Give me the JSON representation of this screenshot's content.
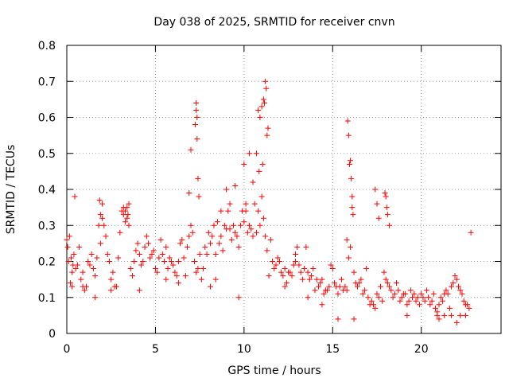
{
  "chart_data": {
    "type": "scatter",
    "title": "Day 038 of 2025, SRMTID for receiver cnvn",
    "xlabel": "GPS time / hours",
    "ylabel": "SRMTID / TECUs",
    "xlim": [
      0,
      24.5
    ],
    "ylim": [
      0,
      0.8
    ],
    "xticks": [
      0,
      5,
      10,
      15,
      20
    ],
    "yticks": [
      0,
      0.1,
      0.2,
      0.3,
      0.4,
      0.5,
      0.6,
      0.7,
      0.8
    ],
    "xtick_labels": [
      "0",
      "5",
      "10",
      "15",
      "20"
    ],
    "ytick_labels": [
      "0",
      "0.1",
      "0.2",
      "0.3",
      "0.4",
      "0.5",
      "0.6",
      "0.7",
      "0.8"
    ],
    "grid": true,
    "marker": "+",
    "color": "#ff0000",
    "series": [
      {
        "name": "SRMTID",
        "x": [
          0.0,
          0.1,
          0.2,
          0.3,
          0.4,
          0.5,
          0.6,
          0.7,
          0.8,
          0.9,
          1.0,
          1.1,
          1.2,
          1.3,
          1.4,
          1.5,
          1.6,
          1.7,
          1.8,
          1.9,
          2.0,
          2.1,
          2.2,
          2.3,
          2.4,
          2.5,
          2.6,
          2.7,
          2.8,
          2.9,
          3.0,
          3.1,
          3.2,
          3.3,
          3.4,
          3.5,
          3.6,
          3.7,
          3.8,
          3.9,
          4.0,
          4.1,
          4.2,
          4.3,
          4.4,
          4.5,
          4.6,
          4.7,
          4.8,
          4.9,
          5.0,
          5.1,
          5.2,
          5.3,
          5.4,
          5.5,
          5.6,
          5.7,
          5.8,
          5.9,
          6.0,
          6.1,
          6.2,
          6.3,
          6.4,
          6.5,
          6.6,
          6.7,
          6.8,
          6.9,
          7.0,
          7.1,
          7.2,
          7.3,
          7.4,
          7.5,
          7.6,
          7.7,
          7.8,
          7.9,
          8.0,
          8.1,
          8.2,
          8.3,
          8.4,
          8.5,
          8.6,
          8.7,
          8.8,
          8.9,
          9.0,
          9.1,
          9.2,
          9.3,
          9.4,
          9.5,
          9.6,
          9.7,
          9.8,
          9.9,
          10.0,
          10.1,
          10.2,
          10.3,
          10.4,
          10.5,
          10.6,
          10.7,
          10.8,
          10.9,
          11.0,
          11.1,
          11.2,
          11.3,
          11.4,
          11.5,
          11.6,
          11.7,
          11.8,
          11.9,
          12.0,
          12.1,
          12.2,
          12.3,
          12.4,
          12.5,
          12.6,
          12.7,
          12.8,
          12.9,
          13.0,
          13.1,
          13.2,
          13.3,
          13.4,
          13.5,
          13.6,
          13.7,
          13.8,
          13.9,
          14.0,
          14.1,
          14.2,
          14.3,
          14.4,
          14.5,
          14.6,
          14.7,
          14.8,
          14.9,
          15.0,
          15.1,
          15.2,
          15.3,
          15.4,
          15.5,
          15.6,
          15.7,
          15.8,
          15.9,
          16.0,
          16.1,
          16.2,
          16.3,
          16.4,
          16.5,
          16.6,
          16.7,
          16.8,
          16.9,
          17.0,
          17.1,
          17.2,
          17.3,
          17.4,
          17.5,
          17.6,
          17.7,
          17.8,
          17.9,
          18.0,
          18.1,
          18.2,
          18.3,
          18.4,
          18.5,
          18.6,
          18.7,
          18.8,
          18.9,
          19.0,
          19.1,
          19.2,
          19.3,
          19.4,
          19.5,
          19.6,
          19.7,
          19.8,
          19.9,
          20.0,
          20.1,
          20.2,
          20.3,
          20.4,
          20.5,
          20.6,
          20.7,
          20.8,
          20.9,
          21.0,
          21.1,
          21.2,
          21.3,
          21.4,
          21.5,
          21.6,
          21.7,
          21.8,
          21.9,
          22.0,
          22.1,
          22.2,
          22.3,
          22.4,
          22.5,
          22.6,
          22.7,
          22.8,
          0.05,
          0.15,
          0.25,
          0.35,
          0.45,
          1.85,
          1.9,
          2.0,
          3.2,
          3.3,
          3.4,
          3.45,
          3.5,
          6.9,
          7.0,
          7.25,
          7.3,
          7.3,
          7.35,
          7.35,
          7.4,
          7.45,
          8.7,
          9.0,
          9.2,
          9.5,
          10.0,
          10.1,
          10.3,
          10.5,
          10.7,
          10.8,
          10.85,
          10.9,
          11.0,
          11.05,
          11.1,
          11.15,
          11.2,
          11.25,
          11.3,
          11.35,
          15.85,
          15.9,
          15.95,
          16.0,
          16.05,
          16.1,
          16.15,
          17.4,
          17.5,
          17.6,
          17.95,
          18.0,
          18.05,
          18.1,
          18.2,
          20.9,
          21.0,
          22.0,
          22.2,
          16.2,
          15.8,
          12.9,
          0.3,
          0.9,
          1.6,
          2.5,
          4.1,
          5.6,
          6.3,
          8.1,
          8.4,
          9.7,
          12.3,
          13.6,
          14.4,
          15.3,
          19.2,
          21.3,
          21.7,
          22.5
        ],
        "y": [
          0.26,
          0.2,
          0.14,
          0.17,
          0.22,
          0.18,
          0.19,
          0.24,
          0.15,
          0.17,
          0.12,
          0.13,
          0.2,
          0.19,
          0.22,
          0.18,
          0.16,
          0.21,
          0.3,
          0.25,
          0.32,
          0.3,
          0.27,
          0.22,
          0.2,
          0.15,
          0.17,
          0.13,
          0.13,
          0.21,
          0.28,
          0.34,
          0.33,
          0.31,
          0.32,
          0.3,
          0.18,
          0.16,
          0.2,
          0.23,
          0.25,
          0.22,
          0.19,
          0.2,
          0.24,
          0.27,
          0.25,
          0.21,
          0.22,
          0.23,
          0.18,
          0.17,
          0.21,
          0.26,
          0.22,
          0.2,
          0.24,
          0.18,
          0.21,
          0.2,
          0.19,
          0.17,
          0.16,
          0.2,
          0.25,
          0.26,
          0.21,
          0.16,
          0.24,
          0.27,
          0.3,
          0.28,
          0.2,
          0.17,
          0.18,
          0.22,
          0.15,
          0.18,
          0.24,
          0.22,
          0.28,
          0.25,
          0.27,
          0.3,
          0.22,
          0.31,
          0.25,
          0.27,
          0.23,
          0.3,
          0.29,
          0.34,
          0.29,
          0.26,
          0.3,
          0.28,
          0.27,
          0.24,
          0.3,
          0.34,
          0.31,
          0.34,
          0.28,
          0.3,
          0.29,
          0.27,
          0.36,
          0.28,
          0.34,
          0.3,
          0.38,
          0.32,
          0.27,
          0.23,
          0.16,
          0.26,
          0.2,
          0.18,
          0.19,
          0.21,
          0.2,
          0.17,
          0.16,
          0.18,
          0.14,
          0.17,
          0.17,
          0.16,
          0.19,
          0.22,
          0.24,
          0.19,
          0.17,
          0.15,
          0.18,
          0.24,
          0.17,
          0.15,
          0.16,
          0.18,
          0.12,
          0.15,
          0.13,
          0.14,
          0.15,
          0.11,
          0.12,
          0.12,
          0.13,
          0.19,
          0.18,
          0.14,
          0.13,
          0.11,
          0.13,
          0.15,
          0.12,
          0.13,
          0.12,
          0.21,
          0.24,
          0.35,
          0.17,
          0.14,
          0.13,
          0.14,
          0.15,
          0.11,
          0.12,
          0.18,
          0.1,
          0.08,
          0.09,
          0.08,
          0.07,
          0.11,
          0.1,
          0.13,
          0.09,
          0.17,
          0.15,
          0.14,
          0.13,
          0.12,
          0.1,
          0.11,
          0.14,
          0.12,
          0.09,
          0.1,
          0.11,
          0.11,
          0.08,
          0.09,
          0.12,
          0.1,
          0.11,
          0.09,
          0.1,
          0.08,
          0.11,
          0.1,
          0.09,
          0.12,
          0.1,
          0.08,
          0.09,
          0.11,
          0.07,
          0.06,
          0.08,
          0.1,
          0.09,
          0.11,
          0.12,
          0.11,
          0.07,
          0.13,
          0.14,
          0.16,
          0.15,
          0.13,
          0.12,
          0.11,
          0.09,
          0.08,
          0.08,
          0.07,
          0.28,
          0.24,
          0.27,
          0.21,
          0.19,
          0.38,
          0.37,
          0.33,
          0.36,
          0.35,
          0.34,
          0.35,
          0.33,
          0.36,
          0.39,
          0.51,
          0.58,
          0.64,
          0.62,
          0.6,
          0.54,
          0.43,
          0.38,
          0.34,
          0.4,
          0.36,
          0.41,
          0.47,
          0.36,
          0.5,
          0.42,
          0.5,
          0.62,
          0.45,
          0.6,
          0.63,
          0.47,
          0.65,
          0.64,
          0.7,
          0.68,
          0.55,
          0.57,
          0.59,
          0.55,
          0.47,
          0.48,
          0.43,
          0.38,
          0.33,
          0.4,
          0.36,
          0.32,
          0.39,
          0.38,
          0.35,
          0.33,
          0.3,
          0.05,
          0.04,
          0.03,
          0.05,
          0.04,
          0.26,
          0.2,
          0.13,
          0.13,
          0.1,
          0.12,
          0.12,
          0.15,
          0.14,
          0.13,
          0.15,
          0.1,
          0.13,
          0.1,
          0.08,
          0.04,
          0.05,
          0.05,
          0.05,
          0.05
        ]
      }
    ]
  }
}
